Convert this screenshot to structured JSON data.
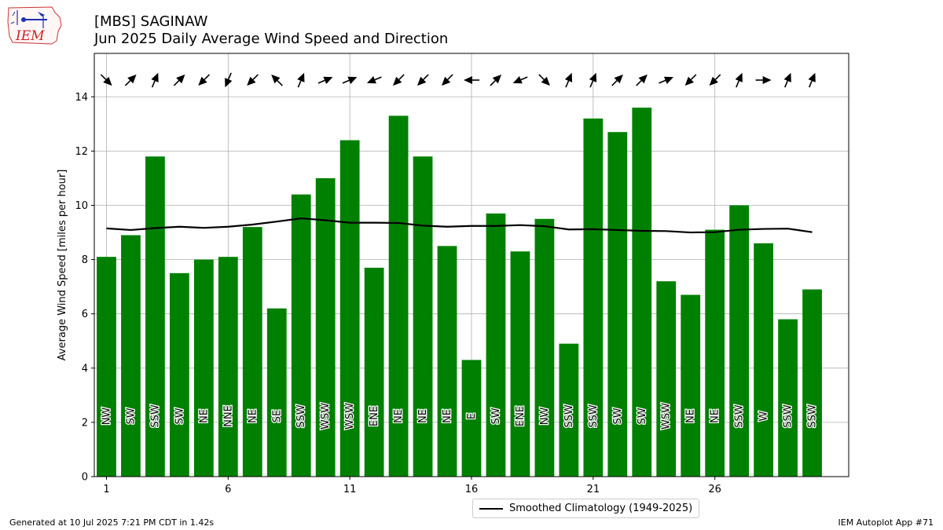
{
  "header": {
    "title_line1": "[MBS] SAGINAW",
    "title_line2": "Jun 2025 Daily Average Wind Speed and Direction",
    "logo_text": "IEM"
  },
  "legend": {
    "label": "Smoothed Climatology (1949-2025)"
  },
  "footer": {
    "left": "Generated at 10 Jul 2025 7:21 PM CDT in 1.42s",
    "right": "IEM Autoplot App #71"
  },
  "colors": {
    "bar": "#008000",
    "line": "#000000",
    "grid": "#b0b0b0"
  },
  "chart_data": {
    "type": "bar",
    "ylabel": "Average Wind Speed [miles per hour]",
    "ylim": [
      0,
      15.6
    ],
    "xlim": [
      0.5,
      31.5
    ],
    "yticks": [
      0,
      2,
      4,
      6,
      8,
      10,
      12,
      14
    ],
    "xticks": [
      1,
      6,
      11,
      16,
      21,
      26
    ],
    "grid": true,
    "legend_position": "bottom-center",
    "days": [
      1,
      2,
      3,
      4,
      5,
      6,
      7,
      8,
      9,
      10,
      11,
      12,
      13,
      14,
      15,
      16,
      17,
      18,
      19,
      20,
      21,
      22,
      23,
      24,
      25,
      26,
      27,
      28,
      29,
      30
    ],
    "wind_speed": [
      8.1,
      8.9,
      11.8,
      7.5,
      8.0,
      8.1,
      9.2,
      6.2,
      10.4,
      11.0,
      12.4,
      7.7,
      13.3,
      11.8,
      8.5,
      4.3,
      9.7,
      8.3,
      9.5,
      4.9,
      13.2,
      12.7,
      13.6,
      7.2,
      6.7,
      9.1,
      10.0,
      8.6,
      5.8,
      6.9
    ],
    "direction_label": [
      "NW",
      "SW",
      "SSW",
      "SW",
      "NE",
      "NNE",
      "NE",
      "SE",
      "SSW",
      "WSW",
      "WSW",
      "ENE",
      "NE",
      "NE",
      "NE",
      "E",
      "SW",
      "ENE",
      "NW",
      "SSW",
      "SSW",
      "SW",
      "SW",
      "WSW",
      "NE",
      "NE",
      "SSW",
      "W",
      "SSW",
      "SSW"
    ],
    "direction_deg": [
      315,
      225,
      202.5,
      225,
      45,
      22.5,
      45,
      135,
      202.5,
      247.5,
      247.5,
      67.5,
      45,
      45,
      45,
      90,
      225,
      67.5,
      315,
      202.5,
      202.5,
      225,
      225,
      247.5,
      45,
      45,
      202.5,
      270,
      202.5,
      202.5
    ],
    "climatology": {
      "name": "Smoothed Climatology (1949-2025)",
      "values": [
        9.15,
        9.09,
        9.16,
        9.21,
        9.17,
        9.21,
        9.29,
        9.4,
        9.52,
        9.45,
        9.36,
        9.36,
        9.35,
        9.25,
        9.21,
        9.24,
        9.24,
        9.27,
        9.23,
        9.11,
        9.12,
        9.09,
        9.06,
        9.05,
        9.0,
        9.01,
        9.1,
        9.13,
        9.14,
        9.01
      ]
    }
  }
}
